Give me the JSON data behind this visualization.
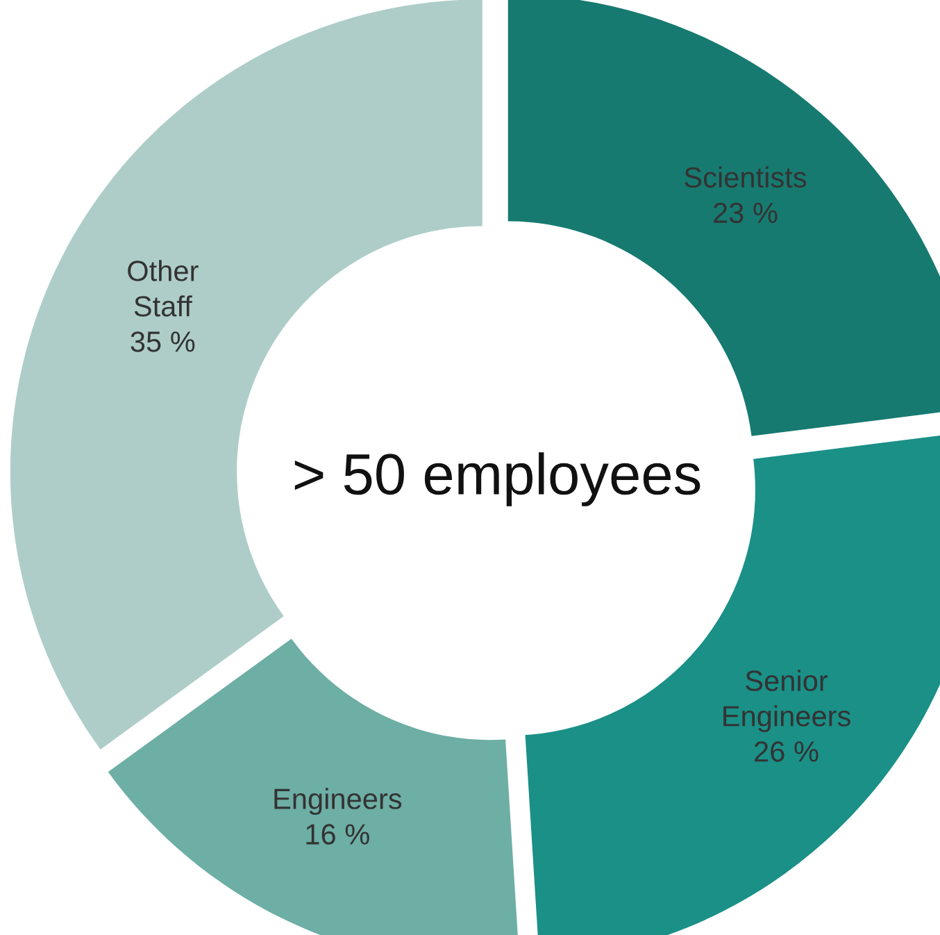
{
  "chart_data": {
    "type": "donut",
    "title": "> 50 employees",
    "categories": [
      "Scientists",
      "Senior\nEngineers",
      "Engineers",
      "Other\nStaff"
    ],
    "values": [
      23,
      26,
      16,
      35
    ],
    "value_labels": [
      "23 %",
      "26 %",
      "16 %",
      "35 %"
    ],
    "colors": [
      "#177a70",
      "#1a9087",
      "#6daea5",
      "#aecdc9"
    ],
    "legend": false
  }
}
